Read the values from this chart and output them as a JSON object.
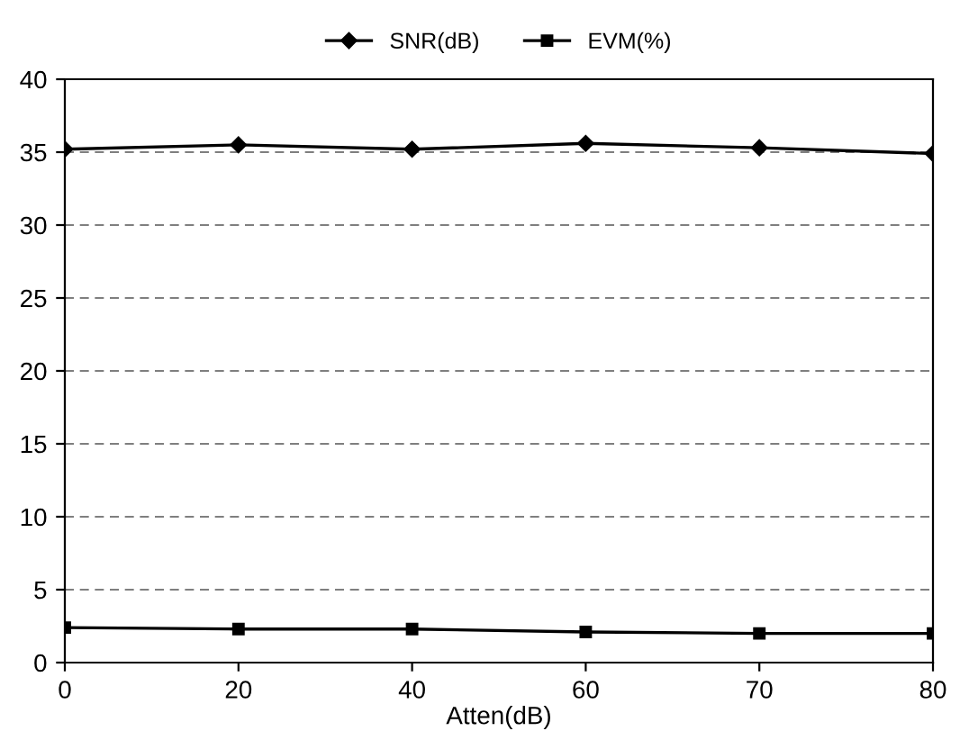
{
  "chart_data": {
    "type": "line",
    "xlabel": "Atten(dB)",
    "categories": [
      "0",
      "20",
      "40",
      "60",
      "70",
      "80"
    ],
    "series": [
      {
        "name": "SNR(dB)",
        "color": "#000000",
        "marker": "diamond",
        "values": [
          35.2,
          35.5,
          35.2,
          35.6,
          35.3,
          34.9
        ]
      },
      {
        "name": "EVM(%)",
        "color": "#000000",
        "marker": "square",
        "values": [
          2.4,
          2.3,
          2.3,
          2.1,
          2.0,
          2.0
        ]
      }
    ],
    "ylim": [
      0,
      40
    ],
    "yticks": [
      0,
      5,
      10,
      15,
      20,
      25,
      30,
      35,
      40
    ],
    "grid": "y",
    "legend": "top",
    "line_style": "solid"
  }
}
